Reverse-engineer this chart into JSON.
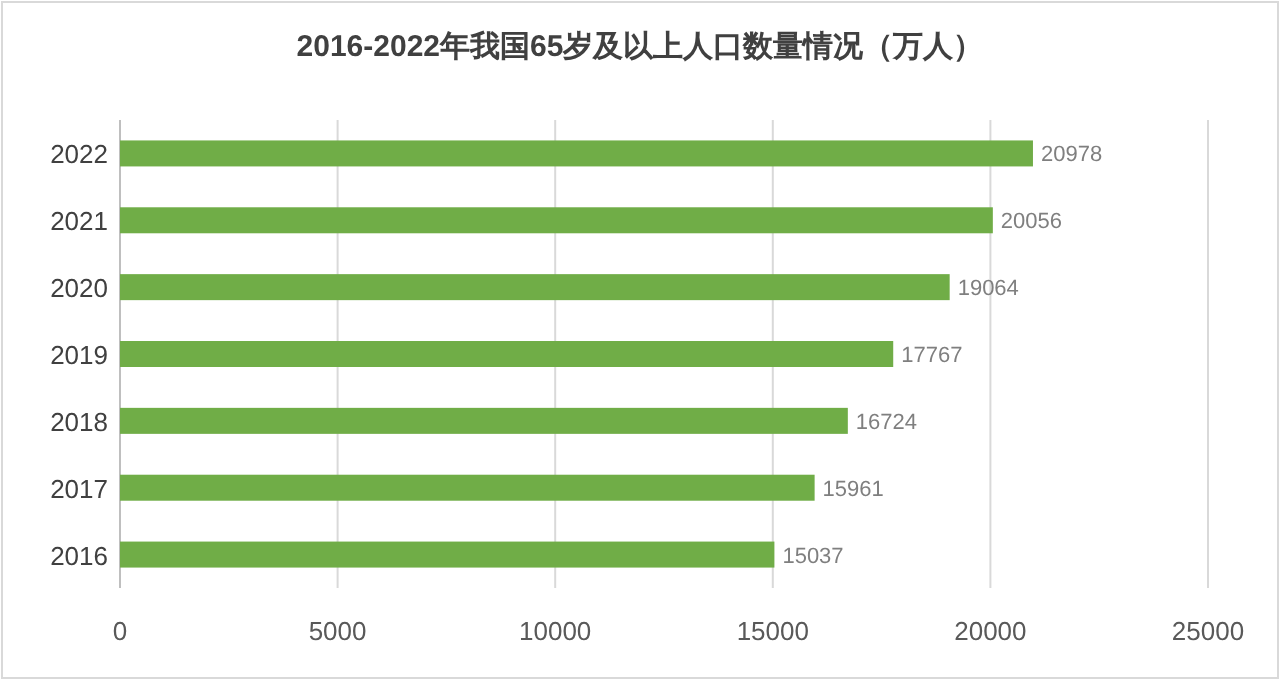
{
  "chart_data": {
    "type": "bar",
    "title": "2016-2022年我国65岁及以上人口数量情况（万人）",
    "orientation": "horizontal",
    "categories": [
      "2022",
      "2021",
      "2020",
      "2019",
      "2018",
      "2017",
      "2016"
    ],
    "values": [
      20978,
      20056,
      19064,
      17767,
      16724,
      15961,
      15037
    ],
    "color": "#70ad47",
    "xlim": [
      0,
      25000
    ],
    "xticks": [
      0,
      5000,
      10000,
      15000,
      20000,
      25000
    ],
    "grid": "x",
    "data_labels": true
  }
}
